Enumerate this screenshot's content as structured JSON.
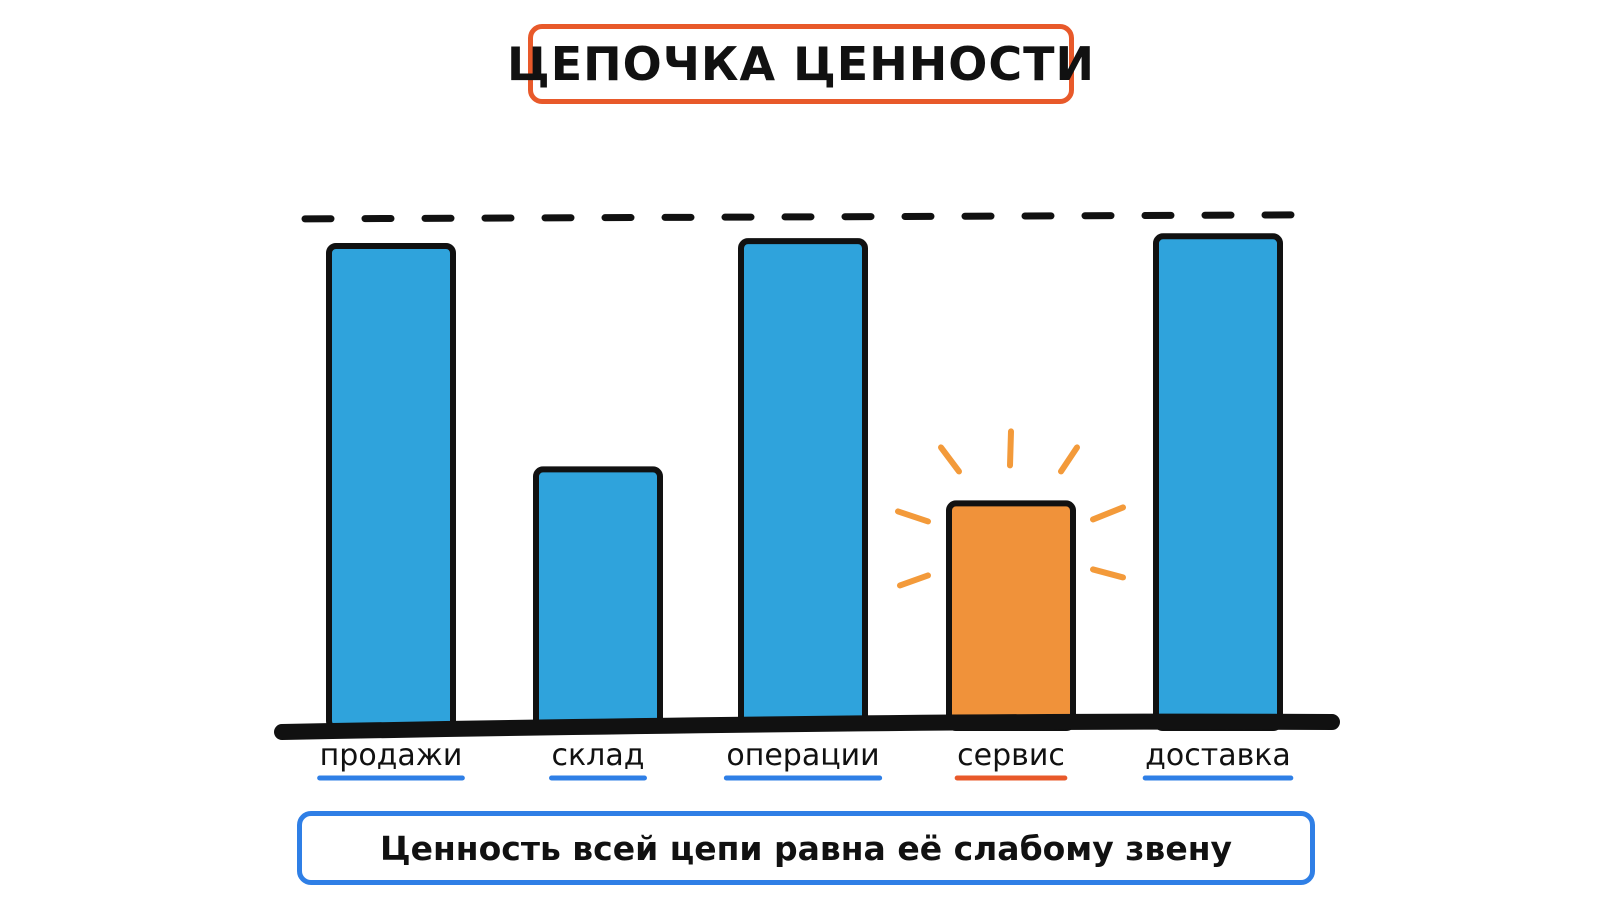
{
  "title": "ЦЕПОЧКА ЦЕННОСТИ",
  "caption": "Ценность всей цепи равна её слабому звену",
  "colors": {
    "bar": "#2fa3dc",
    "highlight": "#f0923a",
    "title_border": "#e8592a",
    "caption_border": "#2f7fe6",
    "underline_default": "#2f7fe6",
    "underline_highlight": "#e8592a",
    "burst": "#f39a3a",
    "outline": "#111111"
  },
  "chart_data": {
    "type": "bar",
    "categories": [
      "продажи",
      "склад",
      "операции",
      "сервис",
      "доставка"
    ],
    "values": [
      98,
      52,
      99,
      45,
      100
    ],
    "highlight_index": 3,
    "reference_line": 104,
    "ylim": [
      0,
      105
    ],
    "grid": false,
    "legend": "none"
  }
}
